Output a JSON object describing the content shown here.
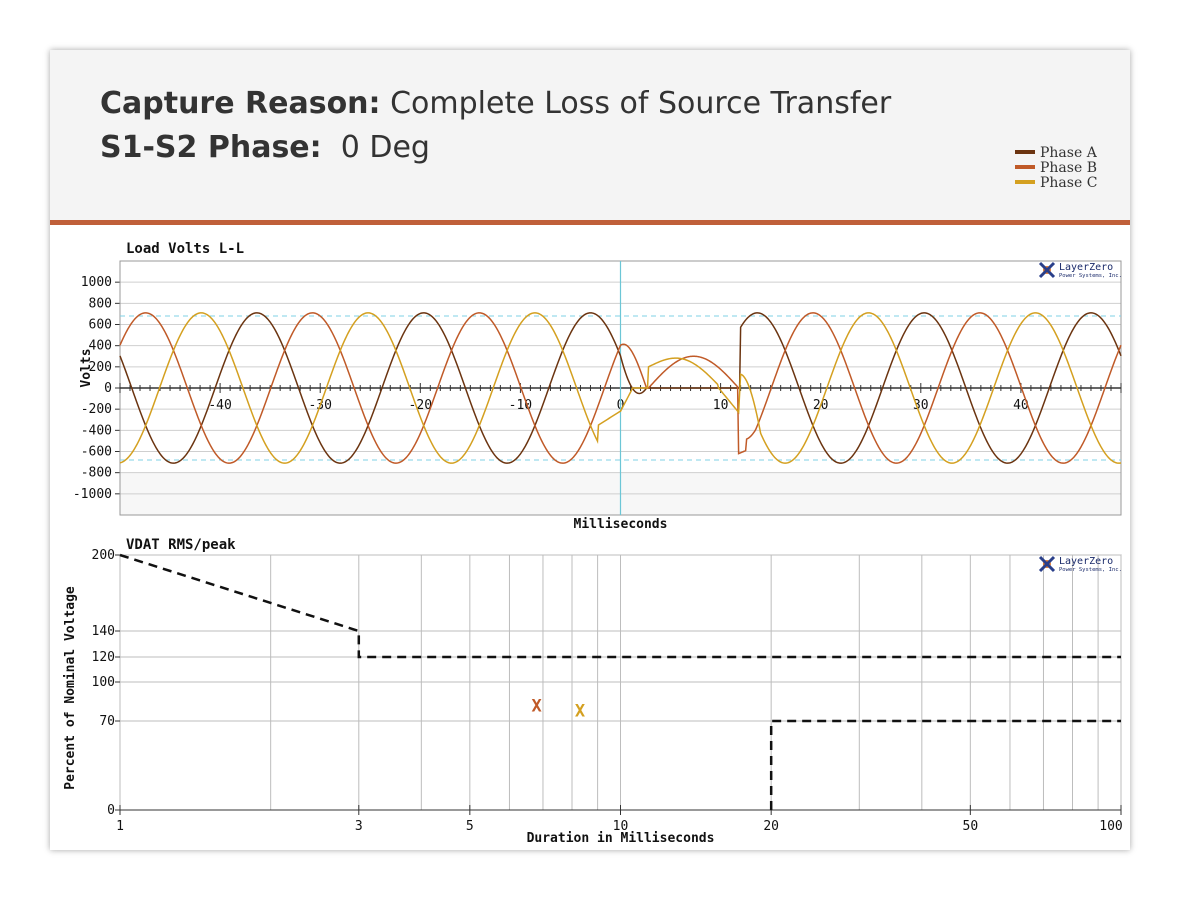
{
  "header": {
    "capture_label": "Capture Reason:",
    "capture_value": " Complete Loss of Source Transfer",
    "phase_label": "S1-S2 Phase:",
    "phase_value": "  0 Deg"
  },
  "legend": [
    {
      "name": "Phase A",
      "color": "#6b3410"
    },
    {
      "name": "Phase B",
      "color": "#c05a28"
    },
    {
      "name": "Phase C",
      "color": "#d4a020"
    }
  ],
  "logo": {
    "line1": "LayerZero",
    "line2": "Power Systems, Inc."
  },
  "chart_data": [
    {
      "type": "line",
      "title": "Load Volts L-L",
      "xlabel": "Milliseconds",
      "ylabel": "Volts",
      "xlim": [
        -50,
        50
      ],
      "ylim": [
        -1200,
        1200
      ],
      "y_ticks": [
        1000,
        800,
        600,
        400,
        200,
        0,
        -200,
        -400,
        -600,
        -800,
        -1000
      ],
      "x_tick_labels": [
        -40,
        -30,
        -20,
        -10,
        0,
        10,
        20,
        30,
        40
      ],
      "peak_voltage": 710,
      "reference_lines": [
        680,
        -680
      ],
      "event_marker_x": 0,
      "series": [
        {
          "name": "Phase A",
          "description": "sine, 710 V peak, 60 Hz; collapses near 0 ms"
        },
        {
          "name": "Phase B",
          "description": "sine, 710 V peak, 60 Hz, shifted -120 deg"
        },
        {
          "name": "Phase C",
          "description": "sine, 710 V peak, 60 Hz, shifted +120 deg"
        }
      ],
      "grid": true
    },
    {
      "type": "scatter",
      "title": "VDAT RMS/peak",
      "xlabel": "Duration in Milliseconds",
      "ylabel": "Percent of Nominal Voltage",
      "x_scale": "log",
      "xlim": [
        1,
        100
      ],
      "y_ticks": [
        0,
        70,
        100,
        120,
        140,
        200
      ],
      "x_tick_labels": [
        1,
        3,
        5,
        10,
        20,
        50,
        100
      ],
      "upper_limit": [
        [
          1,
          200
        ],
        [
          3,
          140
        ],
        [
          3,
          120
        ],
        [
          100,
          120
        ]
      ],
      "lower_limit": [
        [
          20,
          0
        ],
        [
          20,
          70
        ],
        [
          100,
          70
        ]
      ],
      "points": [
        {
          "x": 6.8,
          "y": 82,
          "label": "X",
          "color": "#c05a28"
        },
        {
          "x": 8.3,
          "y": 78,
          "label": "X",
          "color": "#d4a020"
        }
      ],
      "grid": true
    }
  ]
}
